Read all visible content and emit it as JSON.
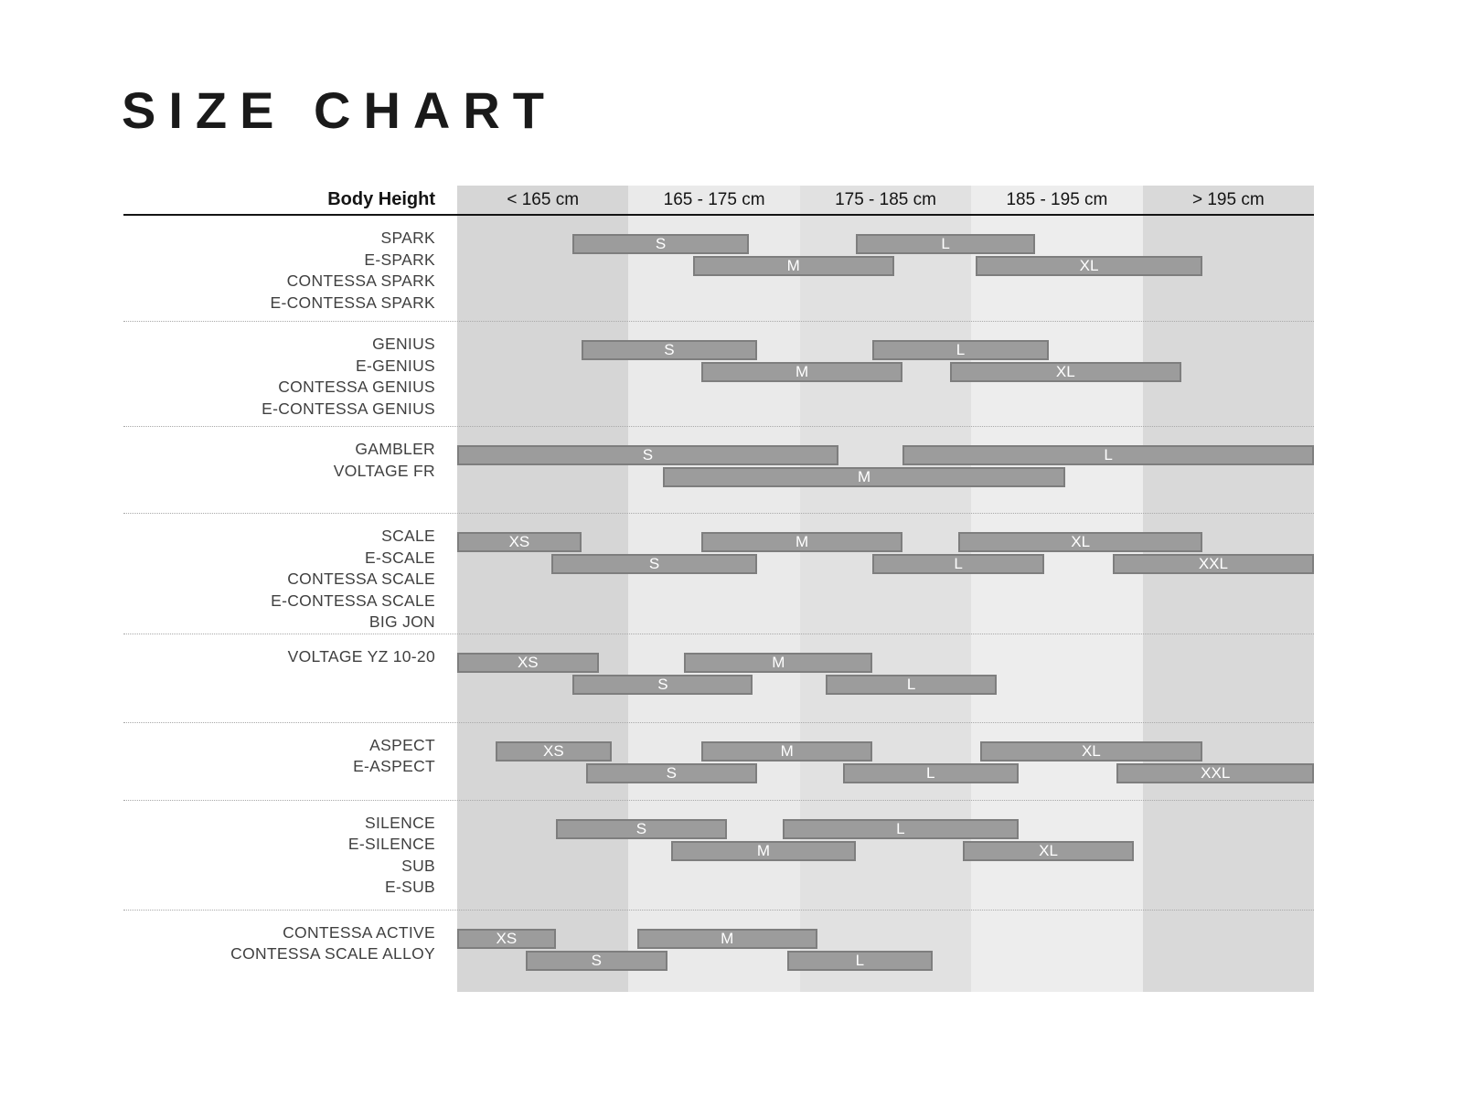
{
  "chart_data": {
    "type": "bar",
    "variant": "horizontal-range-table",
    "title": "SIZE CHART",
    "x_axis": {
      "label": "Body Height",
      "categories": [
        "< 165 cm",
        "165 - 175 cm",
        "175 - 185 cm",
        "185 - 195 cm",
        "> 195 cm"
      ],
      "column_shades": [
        "#d6d6d6",
        "#eaeaea",
        "#e1e1e1",
        "#ededed",
        "#d9d9d9"
      ],
      "range_pct": [
        0,
        100
      ]
    },
    "style": {
      "bar_fill": "#9c9c9c",
      "bar_border": "#7e7e7e",
      "bar_text": "#ffffff",
      "label_text": "#404040",
      "header_text": "#141414",
      "header_rule": "#141414",
      "group_separator": "#a9a9a9"
    },
    "groups": [
      {
        "models": [
          "SPARK",
          "E-SPARK",
          "CONTESSA SPARK",
          "E-CONTESSA SPARK"
        ],
        "block_height": 116,
        "sizes": [
          {
            "label": "S",
            "start_pct": 13.5,
            "end_pct": 34.0,
            "row": 1
          },
          {
            "label": "M",
            "start_pct": 27.5,
            "end_pct": 51.0,
            "row": 2
          },
          {
            "label": "L",
            "start_pct": 46.5,
            "end_pct": 67.5,
            "row": 1
          },
          {
            "label": "XL",
            "start_pct": 60.5,
            "end_pct": 87.0,
            "row": 2
          }
        ]
      },
      {
        "models": [
          "GENIUS",
          "E-GENIUS",
          "CONTESSA GENIUS",
          "E-CONTESSA GENIUS"
        ],
        "block_height": 115,
        "sizes": [
          {
            "label": "S",
            "start_pct": 14.5,
            "end_pct": 35.0,
            "row": 1
          },
          {
            "label": "M",
            "start_pct": 28.5,
            "end_pct": 52.0,
            "row": 2
          },
          {
            "label": "L",
            "start_pct": 48.5,
            "end_pct": 69.0,
            "row": 1
          },
          {
            "label": "XL",
            "start_pct": 57.5,
            "end_pct": 84.5,
            "row": 2
          }
        ]
      },
      {
        "models": [
          "GAMBLER",
          "VOLTAGE FR"
        ],
        "block_height": 95,
        "sizes": [
          {
            "label": "S",
            "start_pct": 0.0,
            "end_pct": 44.5,
            "row": 1
          },
          {
            "label": "M",
            "start_pct": 24.0,
            "end_pct": 71.0,
            "row": 2
          },
          {
            "label": "L",
            "start_pct": 52.0,
            "end_pct": 100.0,
            "row": 1
          }
        ]
      },
      {
        "models": [
          "SCALE",
          "E-SCALE",
          "CONTESSA SCALE",
          "E-CONTESSA SCALE",
          "BIG JON"
        ],
        "block_height": 128,
        "sizes": [
          {
            "label": "XS",
            "start_pct": 0.0,
            "end_pct": 14.5,
            "row": 1
          },
          {
            "label": "S",
            "start_pct": 11.0,
            "end_pct": 35.0,
            "row": 2
          },
          {
            "label": "M",
            "start_pct": 28.5,
            "end_pct": 52.0,
            "row": 1
          },
          {
            "label": "L",
            "start_pct": 48.5,
            "end_pct": 68.5,
            "row": 2
          },
          {
            "label": "XL",
            "start_pct": 58.5,
            "end_pct": 87.0,
            "row": 1
          },
          {
            "label": "XXL",
            "start_pct": 76.5,
            "end_pct": 100.0,
            "row": 2
          }
        ]
      },
      {
        "models": [
          "VOLTAGE YZ 10-20"
        ],
        "block_height": 97,
        "sizes": [
          {
            "label": "XS",
            "start_pct": 0.0,
            "end_pct": 16.5,
            "row": 1
          },
          {
            "label": "S",
            "start_pct": 13.5,
            "end_pct": 34.5,
            "row": 2
          },
          {
            "label": "M",
            "start_pct": 26.5,
            "end_pct": 48.5,
            "row": 1
          },
          {
            "label": "L",
            "start_pct": 43.0,
            "end_pct": 63.0,
            "row": 2
          }
        ]
      },
      {
        "models": [
          "ASPECT",
          "E-ASPECT"
        ],
        "block_height": 85,
        "sizes": [
          {
            "label": "XS",
            "start_pct": 4.5,
            "end_pct": 18.0,
            "row": 1
          },
          {
            "label": "S",
            "start_pct": 15.0,
            "end_pct": 35.0,
            "row": 2
          },
          {
            "label": "M",
            "start_pct": 28.5,
            "end_pct": 48.5,
            "row": 1
          },
          {
            "label": "L",
            "start_pct": 45.0,
            "end_pct": 65.5,
            "row": 2
          },
          {
            "label": "XL",
            "start_pct": 61.0,
            "end_pct": 87.0,
            "row": 1
          },
          {
            "label": "XXL",
            "start_pct": 77.0,
            "end_pct": 100.0,
            "row": 2
          }
        ]
      },
      {
        "models": [
          "SILENCE",
          "E-SILENCE",
          "SUB",
          "E-SUB"
        ],
        "block_height": 120,
        "sizes": [
          {
            "label": "S",
            "start_pct": 11.5,
            "end_pct": 31.5,
            "row": 1
          },
          {
            "label": "M",
            "start_pct": 25.0,
            "end_pct": 46.5,
            "row": 2
          },
          {
            "label": "L",
            "start_pct": 38.0,
            "end_pct": 65.5,
            "row": 1
          },
          {
            "label": "XL",
            "start_pct": 59.0,
            "end_pct": 79.0,
            "row": 2
          }
        ]
      },
      {
        "models": [
          "CONTESSA ACTIVE",
          "CONTESSA SCALE ALLOY"
        ],
        "block_height": 89,
        "sizes": [
          {
            "label": "XS",
            "start_pct": 0.0,
            "end_pct": 11.5,
            "row": 1
          },
          {
            "label": "S",
            "start_pct": 8.0,
            "end_pct": 24.5,
            "row": 2
          },
          {
            "label": "M",
            "start_pct": 21.0,
            "end_pct": 42.0,
            "row": 1
          },
          {
            "label": "L",
            "start_pct": 38.5,
            "end_pct": 55.5,
            "row": 2
          }
        ]
      }
    ]
  }
}
